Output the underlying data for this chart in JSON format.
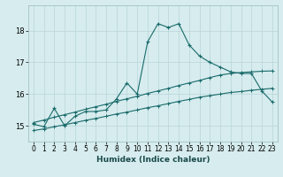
{
  "xlabel": "Humidex (Indice chaleur)",
  "ylabel": "",
  "xlim": [
    -0.5,
    23.5
  ],
  "ylim": [
    14.5,
    18.8
  ],
  "yticks": [
    15,
    16,
    17,
    18
  ],
  "xticks": [
    0,
    1,
    2,
    3,
    4,
    5,
    6,
    7,
    8,
    9,
    10,
    11,
    12,
    13,
    14,
    15,
    16,
    17,
    18,
    19,
    20,
    21,
    22,
    23
  ],
  "bg_color": "#d6ecee",
  "grid_color": "#b8d4d8",
  "line_color": "#1a6b6b",
  "line1": [
    15.05,
    14.97,
    15.55,
    15.0,
    15.3,
    15.45,
    15.45,
    15.5,
    15.85,
    16.35,
    16.0,
    17.65,
    18.22,
    18.1,
    18.22,
    17.55,
    17.2,
    17.0,
    16.85,
    16.7,
    16.65,
    16.65,
    16.1,
    15.75
  ],
  "line2": [
    15.1,
    15.18,
    15.27,
    15.35,
    15.43,
    15.52,
    15.6,
    15.68,
    15.77,
    15.85,
    15.93,
    16.02,
    16.1,
    16.18,
    16.27,
    16.35,
    16.43,
    16.52,
    16.6,
    16.65,
    16.68,
    16.7,
    16.72,
    16.73
  ],
  "line3": [
    14.85,
    14.9,
    14.97,
    15.03,
    15.1,
    15.17,
    15.23,
    15.3,
    15.37,
    15.43,
    15.5,
    15.57,
    15.63,
    15.7,
    15.77,
    15.83,
    15.9,
    15.95,
    16.0,
    16.05,
    16.08,
    16.12,
    16.15,
    16.18
  ]
}
